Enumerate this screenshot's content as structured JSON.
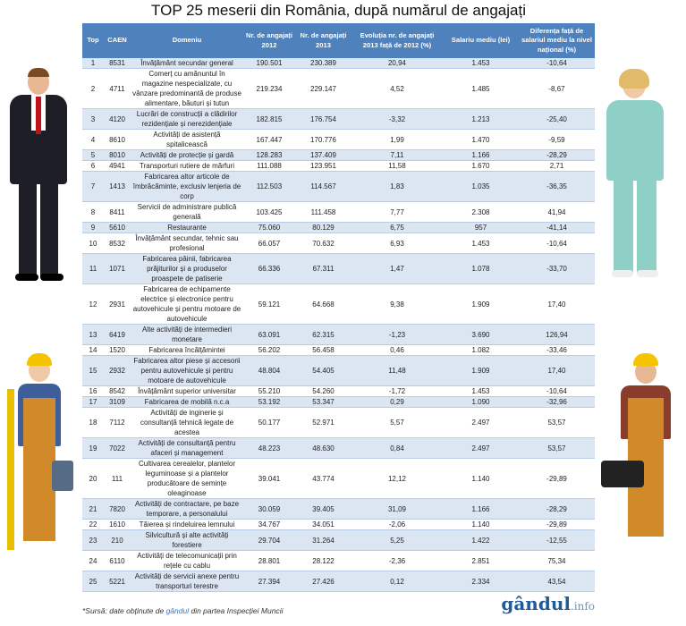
{
  "title": "TOP 25 meserii din România, după numărul de angajați",
  "headers": [
    "Top",
    "CAEN",
    "Domeniu",
    "Nr. de angajați 2012",
    "Nr. de angajați 2013",
    "Evoluția nr. de angajați 2013 față de 2012 (%)",
    "Salariu mediu (lei)",
    "Diferența față de salariul mediu la nivel național (%)"
  ],
  "rows": [
    [
      "1",
      "8531",
      "Învățământ secundar general",
      "190.501",
      "230.389",
      "20,94",
      "1.453",
      "-10,64"
    ],
    [
      "2",
      "4711",
      "Comerț cu amănuntul în magazine nespecializate, cu vânzare predominantă de produse alimentare, băuturi și tutun",
      "219.234",
      "229.147",
      "4,52",
      "1.485",
      "-8,67"
    ],
    [
      "3",
      "4120",
      "Lucrări de construcții a clădirilor rezidențiale și nerezidențiale",
      "182.815",
      "176.754",
      "-3,32",
      "1.213",
      "-25,40"
    ],
    [
      "4",
      "8610",
      "Activități de asistență spitalicească",
      "167.447",
      "170.776",
      "1,99",
      "1.470",
      "-9,59"
    ],
    [
      "5",
      "8010",
      "Activități de protecție și gardă",
      "128.283",
      "137.409",
      "7,11",
      "1.166",
      "-28,29"
    ],
    [
      "6",
      "4941",
      "Transporturi rutiere de mărfuri",
      "111.088",
      "123.951",
      "11,58",
      "1.670",
      "2,71"
    ],
    [
      "7",
      "1413",
      "Fabricarea altor articole de îmbrăcăminte, exclusiv lenjeria de corp",
      "112.503",
      "114.567",
      "1,83",
      "1.035",
      "-36,35"
    ],
    [
      "8",
      "8411",
      "Servicii de administrare publică generală",
      "103.425",
      "111.458",
      "7,77",
      "2.308",
      "41,94"
    ],
    [
      "9",
      "5610",
      "Restaurante",
      "75.060",
      "80.129",
      "6,75",
      "957",
      "-41,14"
    ],
    [
      "10",
      "8532",
      "Învățământ secundar, tehnic sau profesional",
      "66.057",
      "70.632",
      "6,93",
      "1.453",
      "-10,64"
    ],
    [
      "11",
      "1071",
      "Fabricarea pâinii, fabricarea prăjiturilor și a produselor proaspete de patiserie",
      "66.336",
      "67.311",
      "1,47",
      "1.078",
      "-33,70"
    ],
    [
      "12",
      "2931",
      "Fabricarea de echipamente electrice și electronice pentru autovehicule și pentru motoare de autovehicule",
      "59.121",
      "64.668",
      "9,38",
      "1.909",
      "17,40"
    ],
    [
      "13",
      "6419",
      "Alte activități de intermedieri monetare",
      "63.091",
      "62.315",
      "-1,23",
      "3.690",
      "126,94"
    ],
    [
      "14",
      "1520",
      "Fabricarea încălțămintei",
      "56.202",
      "56.458",
      "0,46",
      "1.082",
      "-33,46"
    ],
    [
      "15",
      "2932",
      "Fabricarea altor piese și accesorii pentru autovehicule și pentru motoare de autovehicule",
      "48.804",
      "54.405",
      "11,48",
      "1.909",
      "17,40"
    ],
    [
      "16",
      "8542",
      "Învățământ superior universitar",
      "55.210",
      "54.260",
      "-1,72",
      "1.453",
      "-10,64"
    ],
    [
      "17",
      "3109",
      "Fabricarea de mobilă n.c.a",
      "53.192",
      "53.347",
      "0,29",
      "1.090",
      "-32,96"
    ],
    [
      "18",
      "7112",
      "Activități de inginerie și consultanță tehnică legate de acestea",
      "50.177",
      "52.971",
      "5,57",
      "2.497",
      "53,57"
    ],
    [
      "19",
      "7022",
      "Activități de consultanță pentru afaceri și management",
      "48.223",
      "48.630",
      "0,84",
      "2.497",
      "53,57"
    ],
    [
      "20",
      "111",
      "Cultivarea cerealelor, plantelor leguminoase și a plantelor producătoare de semințe oleaginoase",
      "39.041",
      "43.774",
      "12,12",
      "1.140",
      "-29,89"
    ],
    [
      "21",
      "7820",
      "Activități de contractare, pe baze temporare, a personalului",
      "30.059",
      "39.405",
      "31,09",
      "1.166",
      "-28,29"
    ],
    [
      "22",
      "1610",
      "Tăierea și rindeluirea lemnului",
      "34.767",
      "34.051",
      "-2,06",
      "1.140",
      "-29,89"
    ],
    [
      "23",
      "210",
      "Silvicultură și alte activități forestiere",
      "29.704",
      "31.264",
      "5,25",
      "1.422",
      "-12,55"
    ],
    [
      "24",
      "6110",
      "Activități de telecomunicații prin rețele cu cablu",
      "28.801",
      "28.122",
      "-2,36",
      "2.851",
      "75,34"
    ],
    [
      "25",
      "5221",
      "Activități de servicii anexe pentru transporturi terestre",
      "27.394",
      "27.426",
      "0,12",
      "2.334",
      "43,54"
    ]
  ],
  "source": {
    "prefix": "*Sursă: date obținute de ",
    "brand": "gândul",
    "suffix": " din partea Inspecției Muncii"
  },
  "logo": {
    "main": "gândul",
    "suffix": ".info"
  }
}
